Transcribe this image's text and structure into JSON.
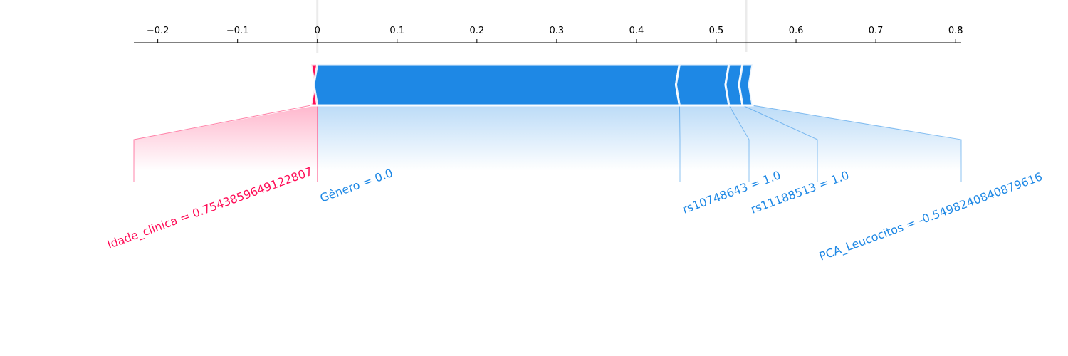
{
  "chart_data": {
    "type": "force",
    "output_value": {
      "value": 0,
      "label": "0.00"
    },
    "xlim": [
      -0.23,
      0.807
    ],
    "xticks": [
      {
        "value": -0.2,
        "label": "−0.2"
      },
      {
        "value": -0.1,
        "label": "−0.1"
      },
      0,
      0.1,
      0.2,
      0.3,
      0.4,
      0.5,
      0.6,
      0.7,
      0.8
    ],
    "features": [
      {
        "label": "Idade_clinica = 0.7543859649122807",
        "value": 0.008,
        "color": "#ff0d57"
      },
      {
        "label": "Gênero = 0.0",
        "value": -0.454,
        "color": "#1e88e5"
      },
      {
        "label": "rs10748643 = 1.0",
        "value": -0.062,
        "color": "#1e88e5"
      },
      {
        "label": "rs11188513 = 1.0",
        "value": -0.017,
        "color": "#1e88e5"
      },
      {
        "label": "PCA_Leucocitos = -0.5498240840879616",
        "value": -0.0125,
        "color": "#1e88e5"
      }
    ]
  }
}
